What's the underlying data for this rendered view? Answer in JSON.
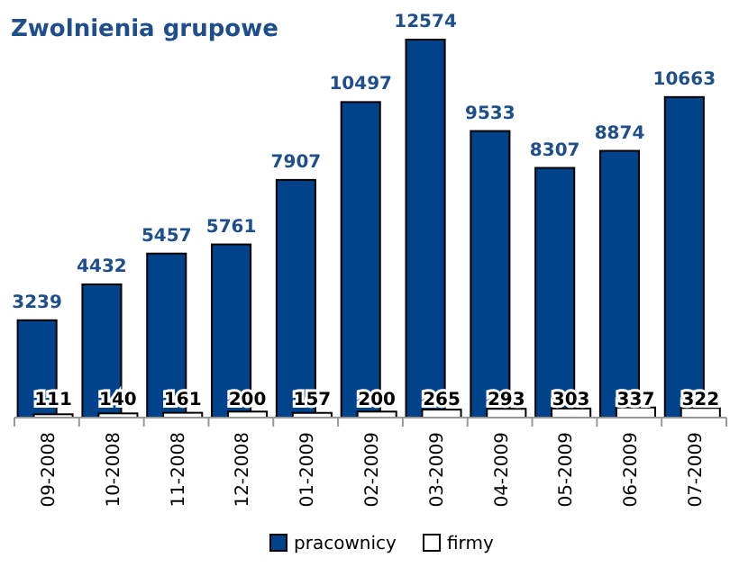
{
  "chart_data": {
    "type": "bar",
    "title": "Zwolnienia grupowe",
    "categories": [
      "09-2008",
      "10-2008",
      "11-2008",
      "12-2008",
      "01-2009",
      "02-2009",
      "03-2009",
      "04-2009",
      "05-2009",
      "06-2009",
      "07-2009"
    ],
    "series": [
      {
        "name": "pracownicy",
        "color": "#00438a",
        "values": [
          3239,
          4432,
          5457,
          5761,
          7907,
          10497,
          12574,
          9533,
          8307,
          8874,
          10663
        ]
      },
      {
        "name": "firmy",
        "color": "#ffffff",
        "values": [
          111,
          140,
          161,
          200,
          157,
          200,
          265,
          293,
          303,
          337,
          322
        ]
      }
    ],
    "tick_labels": "x",
    "data_labels": true,
    "legend": "bottom"
  }
}
